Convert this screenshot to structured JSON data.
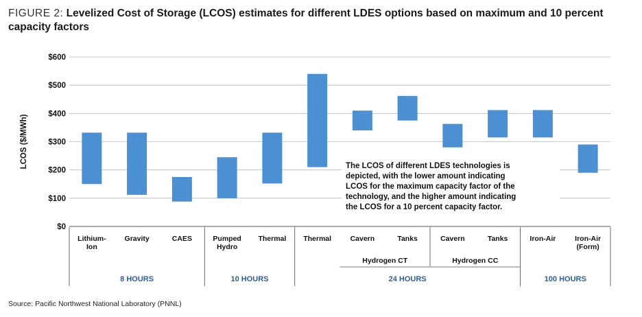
{
  "figure": {
    "label": "FIGURE 2:",
    "title": "Levelized Cost of Storage (LCOS) estimates for different LDES options based on maximum and 10 percent capacity factors",
    "source": "Source: Pacific Northwest National Laboratory (PNNL)"
  },
  "chart_data": {
    "type": "floating-bar",
    "ylabel": "LCOS ($/MWh)",
    "ylim": [
      0,
      600
    ],
    "yticks": [
      "$0",
      "$100",
      "$200",
      "$300",
      "$400",
      "$500",
      "$600"
    ],
    "grid": true,
    "bar_color": "#4a90d2",
    "categories": [
      {
        "label": [
          "Lithium-",
          "Ion"
        ],
        "low": 150,
        "high": 332
      },
      {
        "label": [
          "Gravity"
        ],
        "low": 112,
        "high": 332
      },
      {
        "label": [
          "CAES"
        ],
        "low": 88,
        "high": 175
      },
      {
        "label": [
          "Pumped",
          "Hydro"
        ],
        "low": 100,
        "high": 245
      },
      {
        "label": [
          "Thermal"
        ],
        "low": 152,
        "high": 332
      },
      {
        "label": [
          "Thermal"
        ],
        "low": 210,
        "high": 540
      },
      {
        "label": [
          "Cavern"
        ],
        "low": 340,
        "high": 410
      },
      {
        "label": [
          "Tanks"
        ],
        "low": 375,
        "high": 462
      },
      {
        "label": [
          "Cavern"
        ],
        "low": 280,
        "high": 363
      },
      {
        "label": [
          "Tanks"
        ],
        "low": 315,
        "high": 412
      },
      {
        "label": [
          "Iron-Air"
        ],
        "low": 315,
        "high": 412
      },
      {
        "label": [
          "Iron-Air",
          "(Form)"
        ],
        "low": 190,
        "high": 290
      }
    ],
    "subgroups": [
      {
        "label": "Hydrogen CT",
        "start": 6,
        "end": 7
      },
      {
        "label": "Hydrogen CC",
        "start": 8,
        "end": 9
      }
    ],
    "groups": [
      {
        "label": "8 HOURS",
        "start": 0,
        "end": 2
      },
      {
        "label": "10 HOURS",
        "start": 3,
        "end": 4
      },
      {
        "label": "24 HOURS",
        "start": 5,
        "end": 9
      },
      {
        "label": "100 HOURS",
        "start": 10,
        "end": 11
      }
    ],
    "annotation": [
      "The LCOS of different LDES technologies is",
      "depicted, with the lower amount indicating",
      "LCOS for the maximum capacity factor of the",
      "technology, and the higher amount indicating",
      "the LCOS for a 10 percent capacity factor."
    ]
  }
}
